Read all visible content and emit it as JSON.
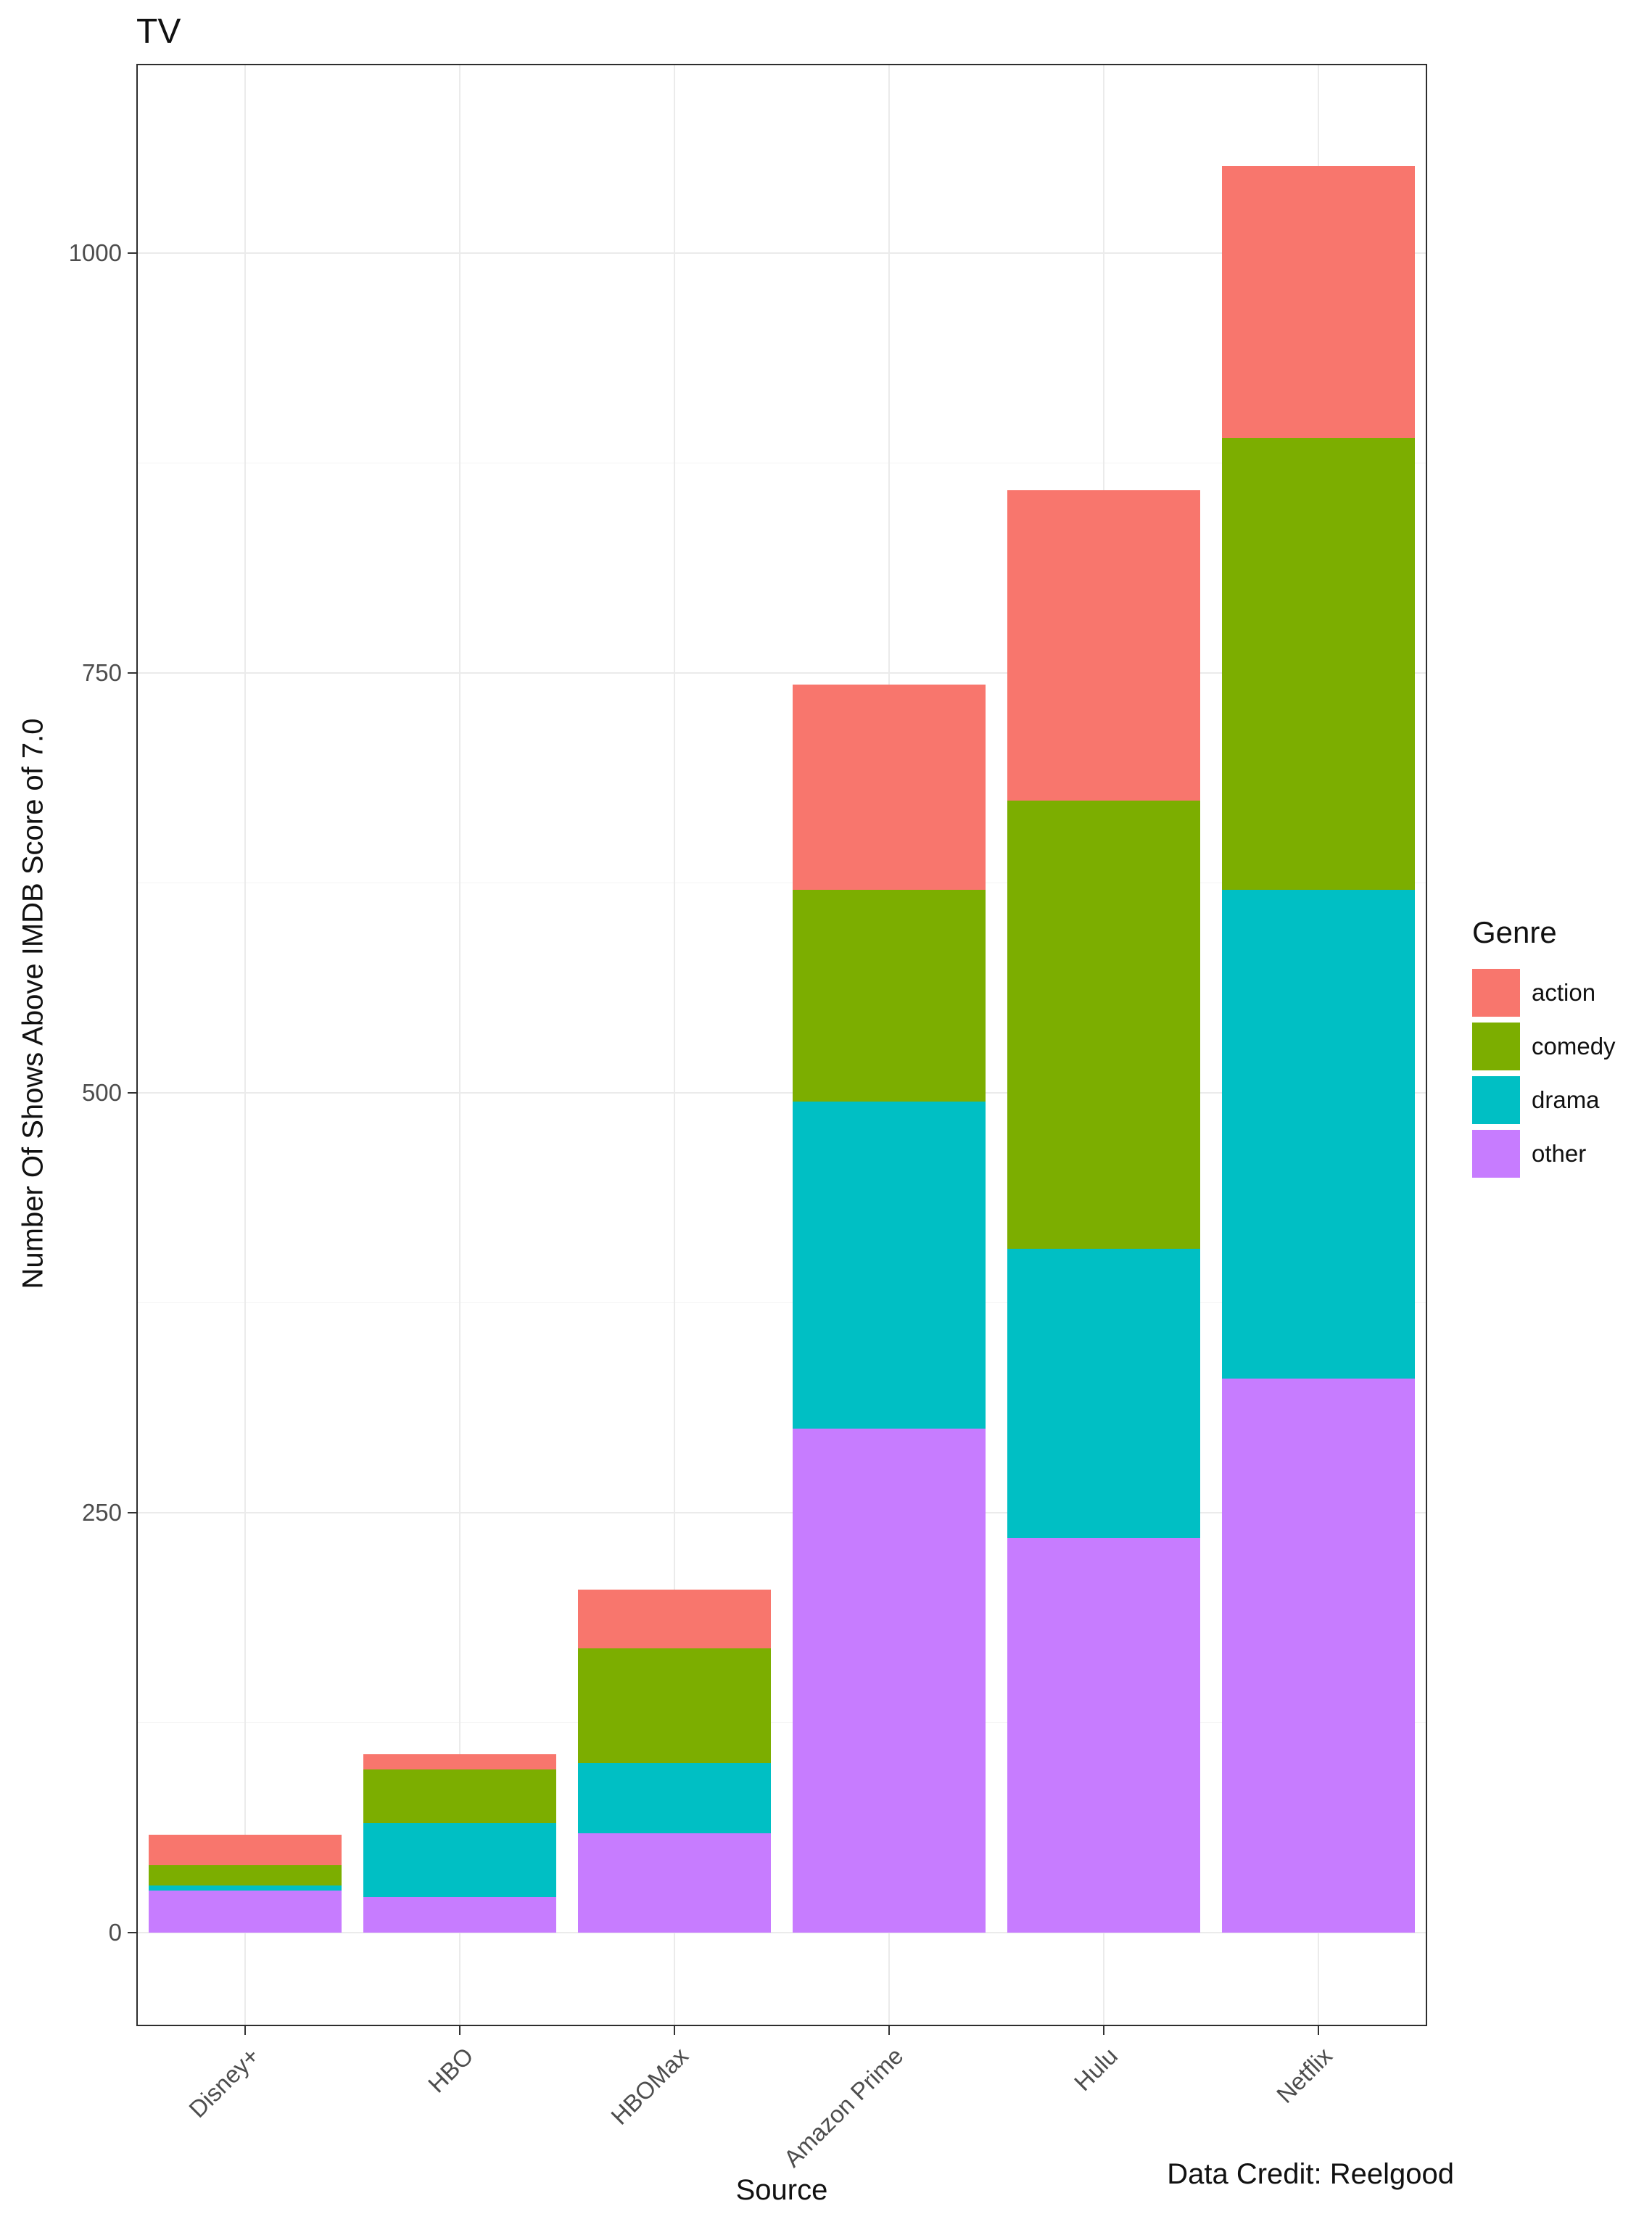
{
  "chart_data": {
    "type": "bar",
    "stacked": true,
    "title": "TV",
    "xlabel": "Source",
    "ylabel": "Number Of Shows Above IMDB Score of 7.0",
    "caption": "Data Credit: Reelgood",
    "legend_title": "Genre",
    "legend_position": "right",
    "grid": true,
    "categories": [
      "Disney+",
      "HBO",
      "HBOMax",
      "Amazon Prime",
      "Hulu",
      "Netflix"
    ],
    "series": [
      {
        "name": "action",
        "color": "#F8766D",
        "values": [
          18,
          9,
          35,
          122,
          185,
          162
        ]
      },
      {
        "name": "comedy",
        "color": "#7CAE00",
        "values": [
          12,
          32,
          68,
          126,
          267,
          269
        ]
      },
      {
        "name": "drama",
        "color": "#00BFC4",
        "values": [
          3,
          44,
          42,
          195,
          172,
          291
        ]
      },
      {
        "name": "other",
        "color": "#C77CFF",
        "values": [
          25,
          21,
          59,
          300,
          235,
          330
        ]
      }
    ],
    "stack_order_bottom_to_top": [
      "other",
      "drama",
      "comedy",
      "action"
    ],
    "totals": [
      58,
      106,
      204,
      743,
      859,
      1052
    ],
    "y_ticks": [
      0,
      250,
      500,
      750,
      1000
    ],
    "y_minor_ticks": [
      125,
      375,
      625,
      875
    ],
    "ylim": [
      -55,
      1112
    ],
    "colors": {
      "panel_border": "#2e2e2e",
      "grid_major": "#ebebeb",
      "tick_text": "#4d4d4d",
      "text": "#111111"
    }
  }
}
